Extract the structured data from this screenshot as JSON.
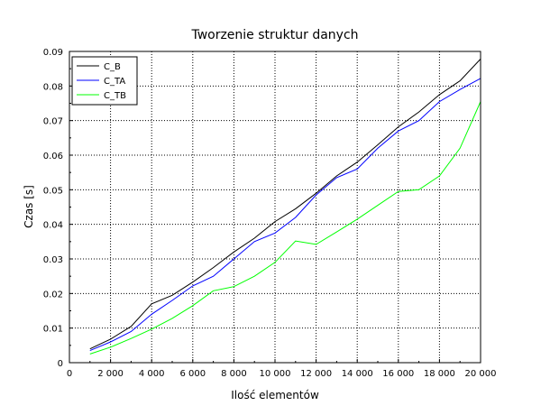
{
  "chart_data": {
    "type": "line",
    "title": "Tworzenie struktur danych",
    "xlabel": "Ilość elementów",
    "ylabel": "Czas [s]",
    "xlim": [
      0,
      20000
    ],
    "ylim": [
      0,
      0.09
    ],
    "grid": true,
    "legend_position": "top-left",
    "x_ticks": [
      0,
      2000,
      4000,
      6000,
      8000,
      10000,
      12000,
      14000,
      16000,
      18000,
      20000
    ],
    "x_tick_labels": [
      "0",
      "2 000",
      "4 000",
      "6 000",
      "8 000",
      "10 000",
      "12 000",
      "14 000",
      "16 000",
      "18 000",
      "20 000"
    ],
    "y_ticks": [
      0,
      0.01,
      0.02,
      0.03,
      0.04,
      0.05,
      0.06,
      0.07,
      0.08,
      0.09
    ],
    "y_tick_labels": [
      "0",
      "0.01",
      "0.02",
      "0.03",
      "0.04",
      "0.05",
      "0.06",
      "0.07",
      "0.08",
      "0.09"
    ],
    "x": [
      1000,
      2000,
      3000,
      4000,
      5000,
      6000,
      7000,
      8000,
      9000,
      10000,
      11000,
      12000,
      13000,
      14000,
      15000,
      16000,
      17000,
      18000,
      19000,
      20000
    ],
    "series": [
      {
        "name": "C_B",
        "color": "#000000",
        "values": [
          0.004,
          0.0068,
          0.0105,
          0.017,
          0.0195,
          0.0233,
          0.0275,
          0.032,
          0.036,
          0.0408,
          0.0445,
          0.049,
          0.054,
          0.058,
          0.063,
          0.0682,
          0.0725,
          0.0775,
          0.0815,
          0.0878
        ]
      },
      {
        "name": "C_TA",
        "color": "#0000ff",
        "values": [
          0.0035,
          0.006,
          0.009,
          0.014,
          0.018,
          0.0222,
          0.025,
          0.03,
          0.035,
          0.0375,
          0.042,
          0.0485,
          0.0535,
          0.056,
          0.062,
          0.067,
          0.07,
          0.0755,
          0.079,
          0.0822
        ]
      },
      {
        "name": "C_TB",
        "color": "#00ff00",
        "values": [
          0.0025,
          0.0045,
          0.007,
          0.0097,
          0.0128,
          0.0165,
          0.0208,
          0.022,
          0.025,
          0.029,
          0.0352,
          0.0342,
          0.0378,
          0.0415,
          0.0455,
          0.0495,
          0.05,
          0.054,
          0.062,
          0.0755
        ]
      }
    ]
  }
}
